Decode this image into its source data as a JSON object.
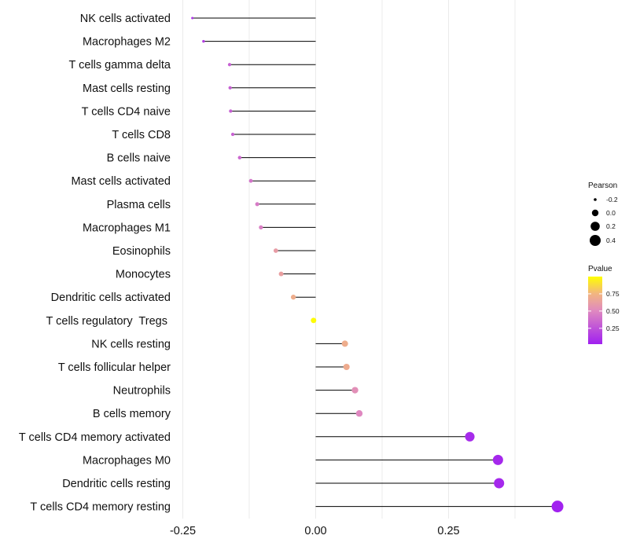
{
  "chart_data": {
    "type": "scatter",
    "subtype": "lollipop",
    "title": "",
    "xlabel": "",
    "ylabel": "",
    "xlim": [
      -0.5,
      0.55
    ],
    "xticks": [
      -0.25,
      0.0,
      0.25
    ],
    "xtick_labels": [
      "-0.25",
      "0.00",
      "0.25"
    ],
    "grid": true,
    "categories": [
      "NK cells activated",
      "Macrophages M2",
      "T cells gamma delta",
      "Mast cells resting",
      "T cells CD4 naive",
      "T cells CD8",
      "B cells naive",
      "Mast cells activated",
      "Plasma cells",
      "Macrophages M1",
      "Eosinophils",
      "Monocytes",
      "Dendritic cells activated",
      "T cells regulatory  Tregs ",
      "NK cells resting",
      "T cells follicular helper",
      "Neutrophils",
      "B cells memory",
      "T cells CD4 memory activated",
      "Macrophages M0",
      "Dendritic cells resting",
      "T cells CD4 memory resting"
    ],
    "pearson": [
      -0.232,
      -0.211,
      -0.162,
      -0.161,
      -0.16,
      -0.156,
      -0.143,
      -0.122,
      -0.11,
      -0.103,
      -0.075,
      -0.065,
      -0.042,
      -0.004,
      0.055,
      0.058,
      0.074,
      0.082,
      0.29,
      0.343,
      0.345,
      0.455
    ],
    "pvalue": [
      0.1,
      0.14,
      0.3,
      0.3,
      0.3,
      0.31,
      0.34,
      0.4,
      0.43,
      0.45,
      0.6,
      0.62,
      0.7,
      0.99,
      0.7,
      0.69,
      0.53,
      0.49,
      0.05,
      0.04,
      0.04,
      0.01
    ],
    "legend": {
      "size_title": "Pearson",
      "size_values": [
        -0.2,
        0.0,
        0.2,
        0.4
      ],
      "size_labels": [
        "-0.2",
        "0.0",
        "0.2",
        "0.4"
      ],
      "color_title": "Pvalue",
      "color_values": [
        0.75,
        0.5,
        0.25
      ],
      "color_labels": [
        "0.75",
        "0.50",
        "0.25"
      ],
      "color_low": "#a020f0",
      "color_high": "#ffff00",
      "placement": "right"
    }
  }
}
